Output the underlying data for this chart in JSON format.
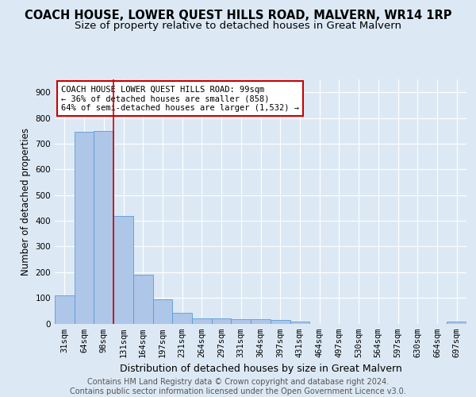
{
  "title": "COACH HOUSE, LOWER QUEST HILLS ROAD, MALVERN, WR14 1RP",
  "subtitle": "Size of property relative to detached houses in Great Malvern",
  "xlabel": "Distribution of detached houses by size in Great Malvern",
  "ylabel": "Number of detached properties",
  "footer_line1": "Contains HM Land Registry data © Crown copyright and database right 2024.",
  "footer_line2": "Contains public sector information licensed under the Open Government Licence v3.0.",
  "categories": [
    "31sqm",
    "64sqm",
    "98sqm",
    "131sqm",
    "164sqm",
    "197sqm",
    "231sqm",
    "264sqm",
    "297sqm",
    "331sqm",
    "364sqm",
    "397sqm",
    "431sqm",
    "464sqm",
    "497sqm",
    "530sqm",
    "564sqm",
    "597sqm",
    "630sqm",
    "664sqm",
    "697sqm"
  ],
  "values": [
    110,
    745,
    750,
    420,
    190,
    95,
    42,
    20,
    21,
    17,
    17,
    14,
    7,
    0,
    0,
    0,
    0,
    0,
    0,
    0,
    8
  ],
  "bar_color": "#aec6e8",
  "bar_edge_color": "#5b9bd5",
  "property_line_x": 2.5,
  "annotation_text_line1": "COACH HOUSE LOWER QUEST HILLS ROAD: 99sqm",
  "annotation_text_line2": "← 36% of detached houses are smaller (858)",
  "annotation_text_line3": "64% of semi-detached houses are larger (1,532) →",
  "annotation_box_color": "#ffffff",
  "annotation_box_edge_color": "#cc0000",
  "vline_color": "#cc0000",
  "ylim": [
    0,
    950
  ],
  "yticks": [
    0,
    100,
    200,
    300,
    400,
    500,
    600,
    700,
    800,
    900
  ],
  "background_color": "#dce9f5",
  "plot_bg_color": "#dce9f5",
  "grid_color": "#ffffff",
  "title_fontsize": 10.5,
  "subtitle_fontsize": 9.5,
  "xlabel_fontsize": 9,
  "ylabel_fontsize": 8.5,
  "tick_fontsize": 7.5,
  "footer_fontsize": 7
}
